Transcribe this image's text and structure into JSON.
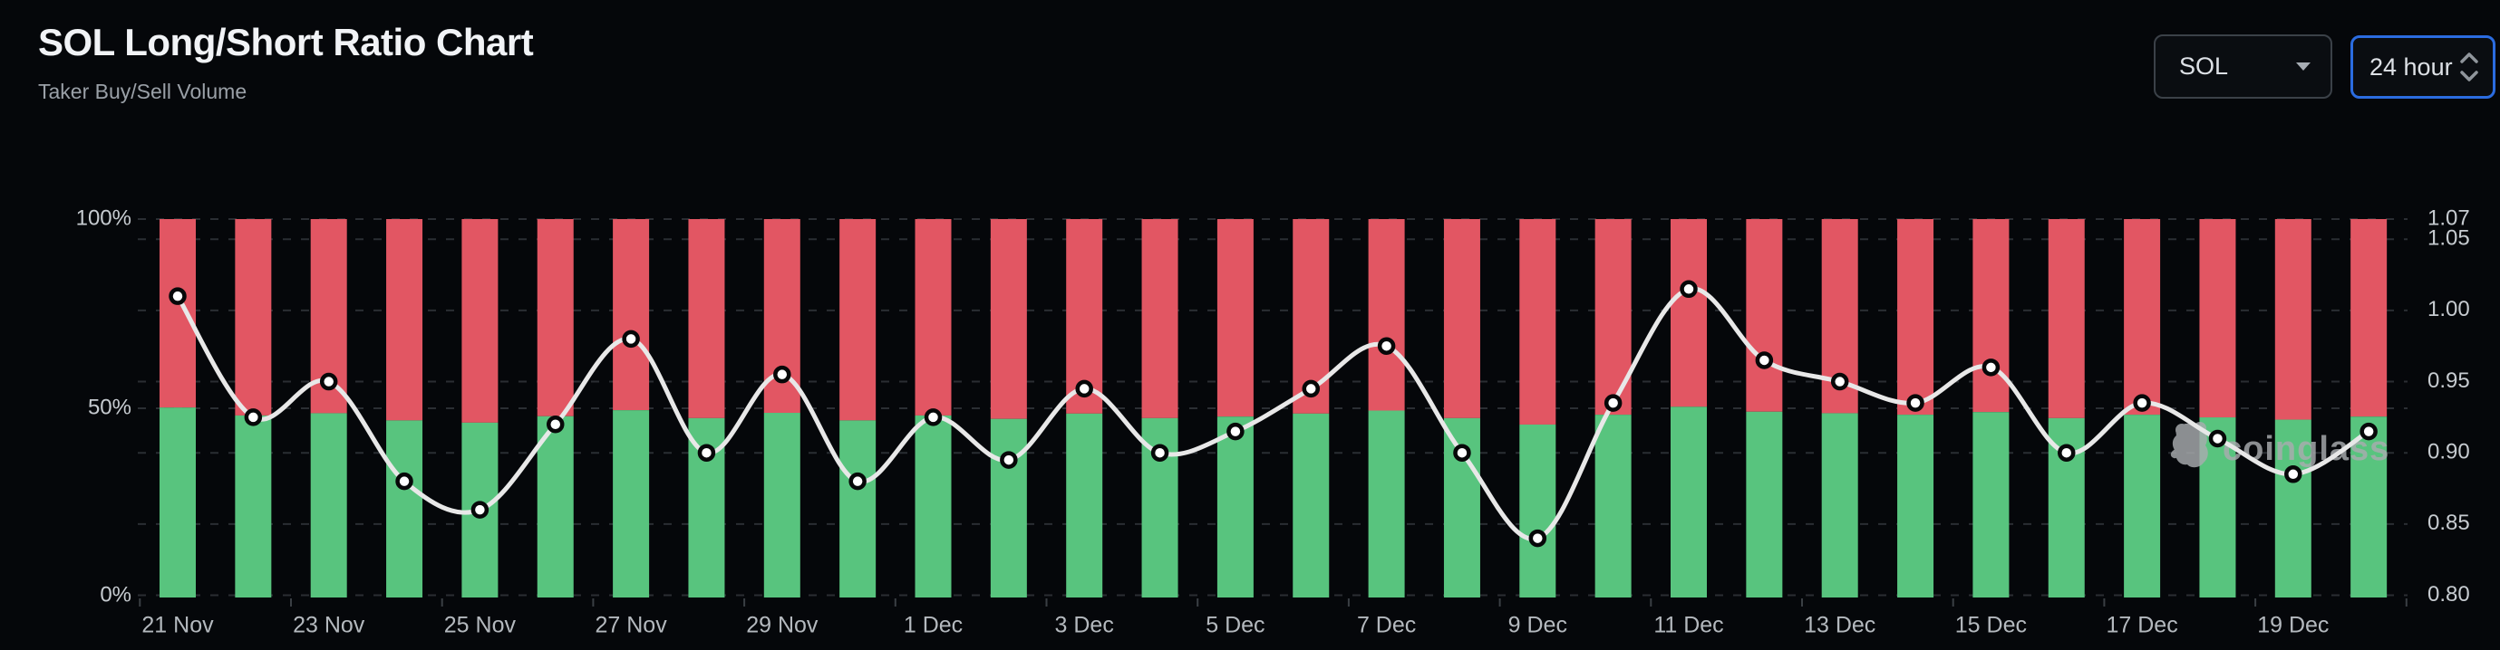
{
  "header": {
    "title": "SOL Long/Short Ratio Chart",
    "subtitle": "Taker Buy/Sell Volume"
  },
  "controls": {
    "symbol": {
      "value": "SOL"
    },
    "interval": {
      "value": "24 hour"
    }
  },
  "watermark": {
    "text": "coinglass"
  },
  "theme": {
    "background": "#05070a",
    "accent_blue": "#2b6ce0",
    "buy_green": "#58c47e",
    "sell_red": "#e25663",
    "line_white": "#e8e8e8",
    "grid_line": "#2a2e33",
    "axis_label": "#c6cbd0",
    "x_label": "#b4b9be"
  },
  "chart_data": {
    "type": "stacked-bar+line",
    "title": "SOL Long/Short Ratio Chart",
    "subtitle": "Taker Buy/Sell Volume",
    "categories": [
      "21 Nov",
      "22 Nov",
      "23 Nov",
      "24 Nov",
      "25 Nov",
      "26 Nov",
      "27 Nov",
      "28 Nov",
      "29 Nov",
      "30 Nov",
      "1 Dec",
      "2 Dec",
      "3 Dec",
      "4 Dec",
      "5 Dec",
      "6 Dec",
      "7 Dec",
      "8 Dec",
      "9 Dec",
      "10 Dec",
      "11 Dec",
      "12 Dec",
      "13 Dec",
      "14 Dec",
      "15 Dec",
      "16 Dec",
      "17 Dec",
      "18 Dec",
      "19 Dec",
      "20 Dec"
    ],
    "series": [
      {
        "name": "Taker Buy %",
        "type": "bar",
        "stack": "total",
        "color": "#58c47e",
        "values": [
          50.2,
          48.1,
          48.7,
          46.8,
          46.2,
          47.9,
          49.5,
          47.4,
          48.8,
          46.8,
          48.1,
          47.2,
          48.6,
          47.4,
          47.8,
          48.6,
          49.4,
          47.4,
          45.7,
          48.3,
          50.4,
          49.1,
          48.7,
          48.3,
          49.0,
          47.4,
          48.3,
          47.6,
          47.0,
          47.8
        ]
      },
      {
        "name": "Taker Sell %",
        "type": "bar",
        "stack": "total",
        "color": "#e25663",
        "values": [
          49.8,
          51.9,
          51.3,
          53.2,
          53.8,
          52.1,
          50.5,
          52.6,
          51.2,
          53.2,
          51.9,
          52.8,
          51.4,
          52.6,
          52.2,
          51.4,
          50.6,
          52.6,
          54.3,
          51.7,
          49.6,
          50.9,
          51.3,
          51.7,
          51.0,
          52.6,
          51.7,
          52.4,
          53.0,
          52.2
        ]
      },
      {
        "name": "Long/Short Ratio",
        "type": "line",
        "color": "#e8e8e8",
        "values": [
          1.01,
          0.925,
          0.95,
          0.88,
          0.86,
          0.92,
          0.98,
          0.9,
          0.955,
          0.88,
          0.925,
          0.895,
          0.945,
          0.9,
          0.915,
          0.945,
          0.975,
          0.9,
          0.84,
          0.935,
          1.015,
          0.965,
          0.95,
          0.935,
          0.96,
          0.9,
          0.935,
          0.91,
          0.885,
          0.915
        ]
      }
    ],
    "left_axis": {
      "labels": [
        "100%",
        "50%",
        "0%"
      ],
      "min": 0,
      "max": 100,
      "unit": "%"
    },
    "right_axis": {
      "labels": [
        "1.07",
        "1.05",
        "1.00",
        "0.95",
        "0.90",
        "0.85",
        "0.80"
      ],
      "min": 0.8,
      "max": 1.07,
      "gridlines": [
        1.05,
        1.0,
        0.95,
        0.9,
        0.85
      ]
    },
    "x_axis": {
      "tick_labels": [
        "21 Nov",
        "23 Nov",
        "25 Nov",
        "27 Nov",
        "29 Nov",
        "1 Dec",
        "3 Dec",
        "5 Dec",
        "7 Dec",
        "9 Dec",
        "11 Dec",
        "13 Dec",
        "15 Dec",
        "17 Dec",
        "19 Dec"
      ],
      "tick_every": 2
    },
    "grid": true,
    "legend": false
  }
}
